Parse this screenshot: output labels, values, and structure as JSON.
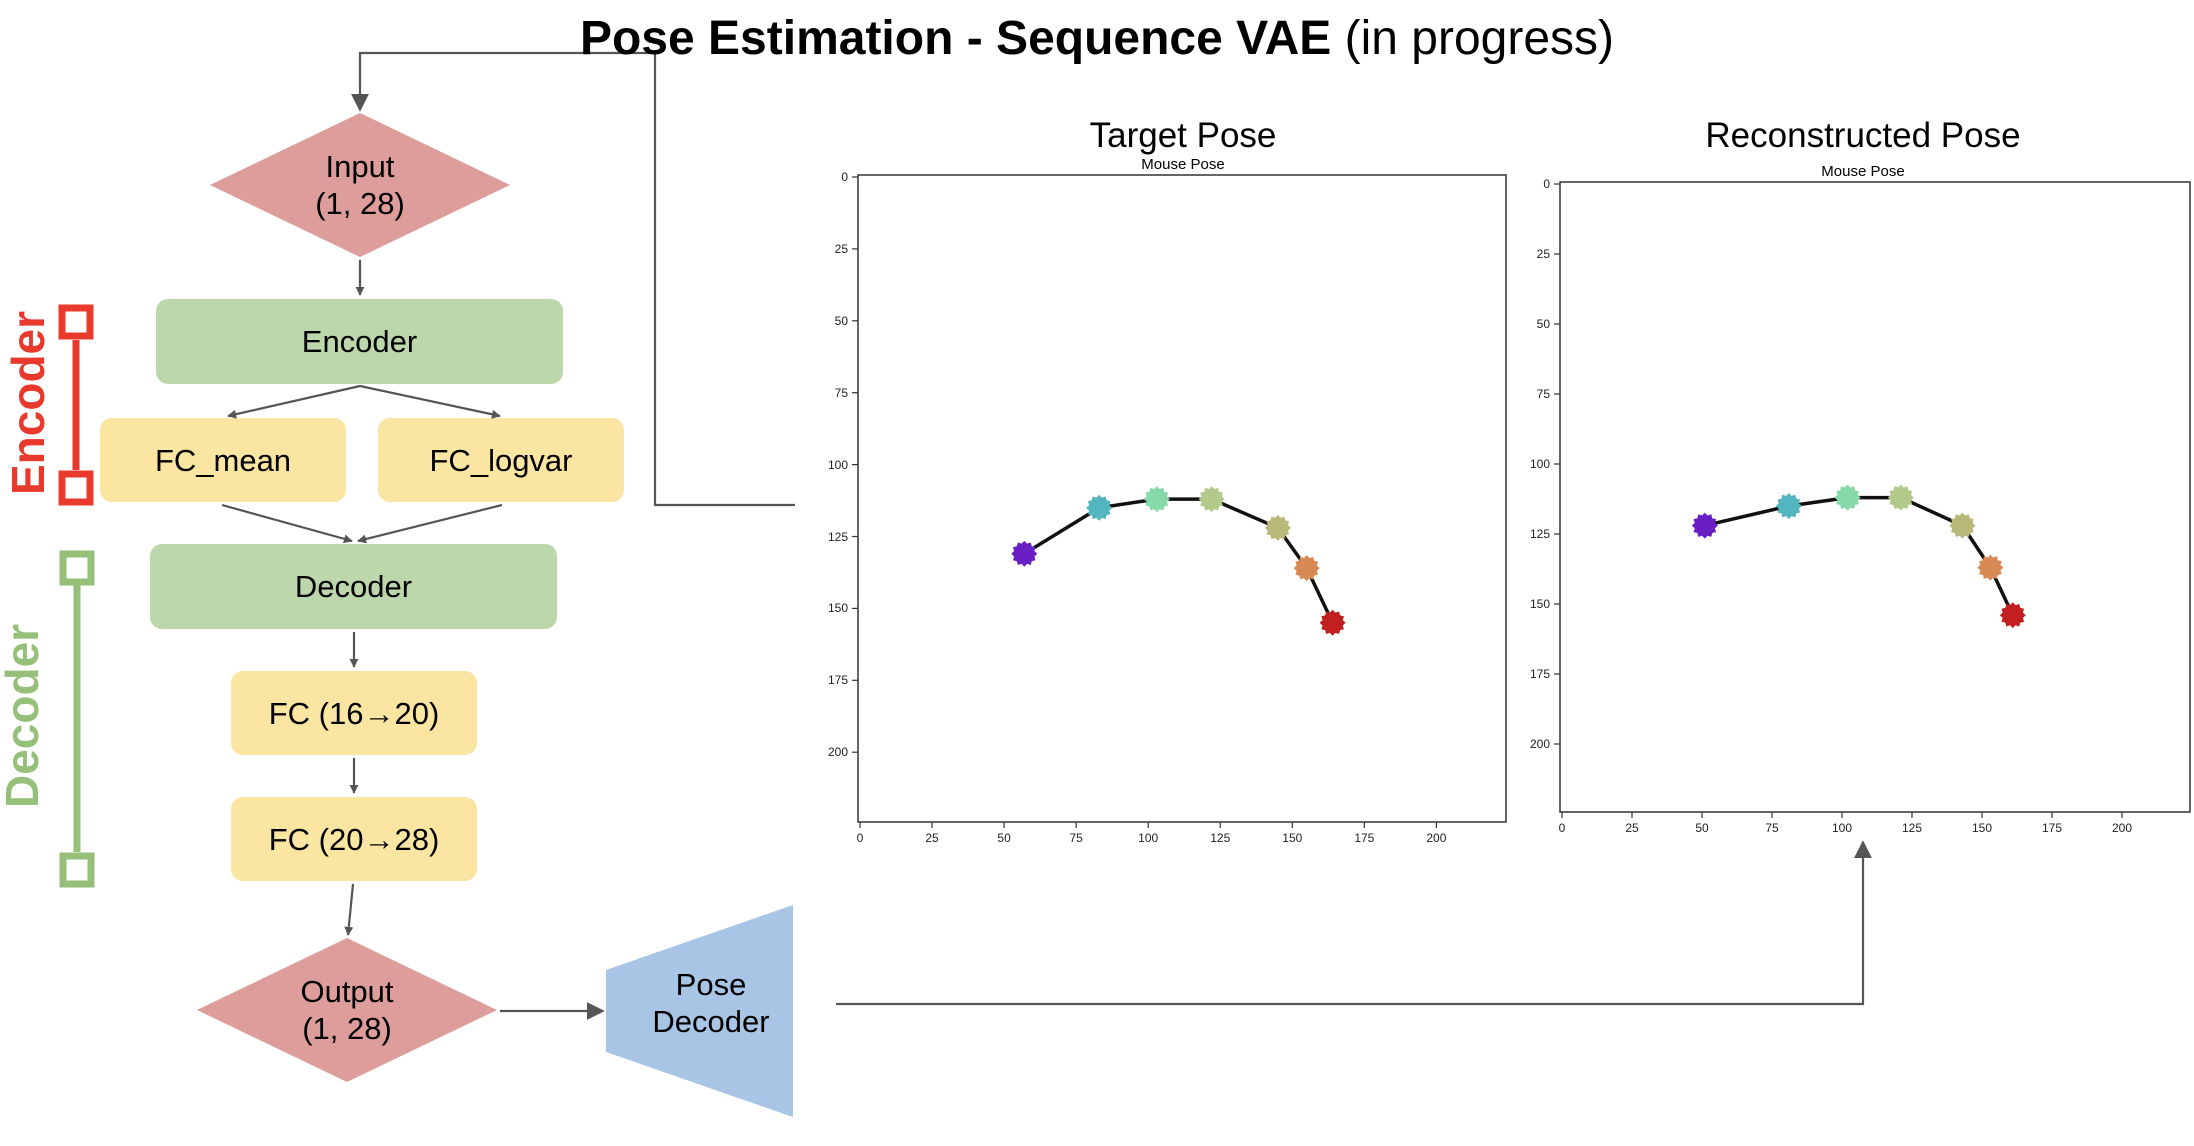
{
  "title": {
    "bold": "Pose Estimation - Sequence VAE",
    "normal": " (in progress)"
  },
  "colors": {
    "diamond": "#dd9d9b",
    "green_box": "#bcd7ab",
    "yellow_box": "#fbe5a3",
    "pose_decoder": "#a8c5e6",
    "encoder_label": "#e8392c",
    "decoder_label": "#96c07a",
    "arrow": "#555555"
  },
  "flow": {
    "input": {
      "line1": "Input",
      "line2": "(1, 28)"
    },
    "encoder": "Encoder",
    "fc_mean": "FC_mean",
    "fc_logvar": "FC_logvar",
    "decoder": "Decoder",
    "fc1": "FC (16→20)",
    "fc2": "FC (20→28)",
    "output": {
      "line1": "Output",
      "line2": "(1, 28)"
    },
    "pose_decoder": {
      "line1": "Pose",
      "line2": "Decoder"
    }
  },
  "side_labels": {
    "encoder": "Encoder",
    "decoder": "Decoder"
  },
  "chart_data": [
    {
      "type": "line",
      "title": "Target Pose",
      "subtitle": "Mouse Pose",
      "xlim": [
        0,
        225
      ],
      "ylim": [
        0,
        225
      ],
      "y_inverted": true,
      "xticks": [
        0,
        25,
        50,
        75,
        100,
        125,
        150,
        175,
        200
      ],
      "yticks": [
        0,
        25,
        50,
        75,
        100,
        125,
        150,
        175,
        200
      ],
      "grid": false,
      "x": [
        57,
        83,
        103,
        122,
        145,
        155,
        164
      ],
      "y": [
        131,
        115,
        112,
        112,
        122,
        136,
        155
      ],
      "point_colors": [
        "#6a1fc4",
        "#52b5c0",
        "#86d9a8",
        "#b3c98a",
        "#b8b878",
        "#d88a55",
        "#c22020"
      ]
    },
    {
      "type": "line",
      "title": "Reconstructed Pose",
      "subtitle": "Mouse Pose",
      "xlim": [
        0,
        225
      ],
      "ylim": [
        0,
        225
      ],
      "y_inverted": true,
      "xticks": [
        0,
        25,
        50,
        75,
        100,
        125,
        150,
        175,
        200
      ],
      "yticks": [
        0,
        25,
        50,
        75,
        100,
        125,
        150,
        175,
        200
      ],
      "grid": false,
      "x": [
        51,
        81,
        102,
        121,
        143,
        153,
        161
      ],
      "y": [
        122,
        115,
        112,
        112,
        122,
        137,
        154
      ],
      "point_colors": [
        "#6a1fc4",
        "#52b5c0",
        "#86d9a8",
        "#b3c98a",
        "#b8b878",
        "#d88a55",
        "#c22020"
      ]
    }
  ]
}
